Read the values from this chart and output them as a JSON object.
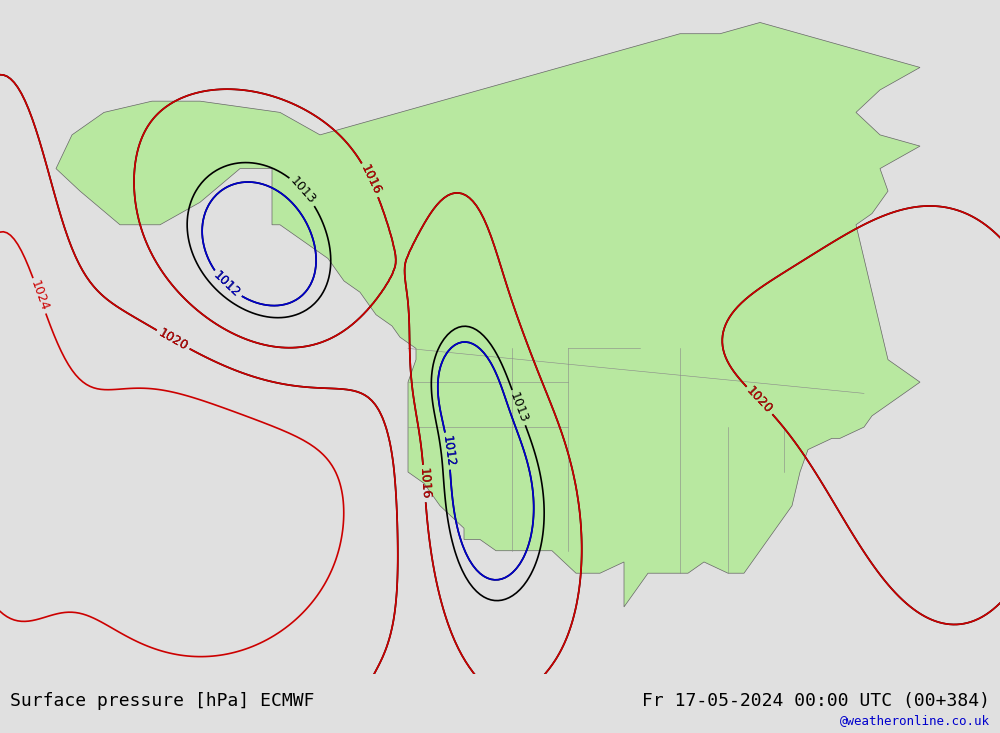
{
  "title_left": "Surface pressure [hPa] ECMWF",
  "title_right": "Fr 17-05-2024 00:00 UTC (00+384)",
  "watermark": "@weatheronline.co.uk",
  "bg_color": "#e8e8e8",
  "land_color": "#b8e8a0",
  "ocean_color": "#d8d8d8",
  "border_color": "#888888",
  "contour_colors": {
    "black": "#000000",
    "red": "#cc0000",
    "blue": "#0000cc"
  },
  "figsize": [
    10.0,
    7.33
  ],
  "dpi": 100
}
